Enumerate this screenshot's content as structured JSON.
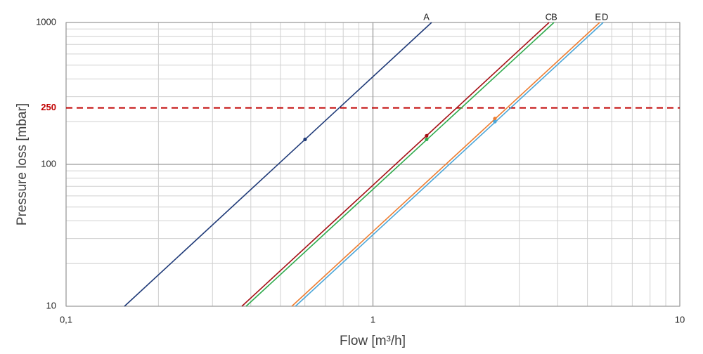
{
  "chart_data": {
    "type": "line",
    "x_label": "Flow [m³/h]",
    "y_label": "Pressure loss [mbar]",
    "log_x": true,
    "log_y": true,
    "grid": true,
    "xlim": [
      0.1,
      10
    ],
    "ylim": [
      10,
      1000
    ],
    "xticks": [
      {
        "value": 0.1,
        "label": "0,1"
      },
      1,
      10
    ],
    "yticks": [
      10,
      100,
      1000
    ],
    "x_minor_ticks": [
      0.2,
      0.3,
      0.4,
      0.5,
      0.6,
      0.7,
      0.8,
      0.9,
      2,
      3,
      4,
      5,
      6,
      7,
      8,
      9
    ],
    "y_minor_ticks": [
      20,
      30,
      40,
      50,
      60,
      70,
      80,
      90,
      200,
      300,
      400,
      500,
      600,
      700,
      800,
      900
    ],
    "reference_line": {
      "value": 250,
      "label": "250",
      "color": "#c00000"
    },
    "series": [
      {
        "name": "A",
        "color": "#1f3a78",
        "x": [
          0.155,
          1.553
        ],
        "y": [
          10,
          1000
        ],
        "point_x": 0.601,
        "point_y": 150
      },
      {
        "name": "B",
        "color": "#a50f15",
        "x": [
          0.374,
          3.75
        ],
        "y": [
          10,
          1000
        ],
        "point_x": 1.496,
        "point_y": 159
      },
      {
        "name": "C",
        "color": "#2eaa4c",
        "x": [
          0.386,
          3.89
        ],
        "y": [
          10,
          1000
        ],
        "point_x": 1.496,
        "point_y": 150
      },
      {
        "name": "D",
        "color": "#ed7d31",
        "x": [
          0.544,
          5.48
        ],
        "y": [
          10,
          1000
        ],
        "point_x": 2.497,
        "point_y": 210
      },
      {
        "name": "E",
        "color": "#4ba6d8",
        "x": [
          0.559,
          5.63
        ],
        "y": [
          10,
          1000
        ],
        "point_x": 2.497,
        "point_y": 200
      }
    ]
  }
}
